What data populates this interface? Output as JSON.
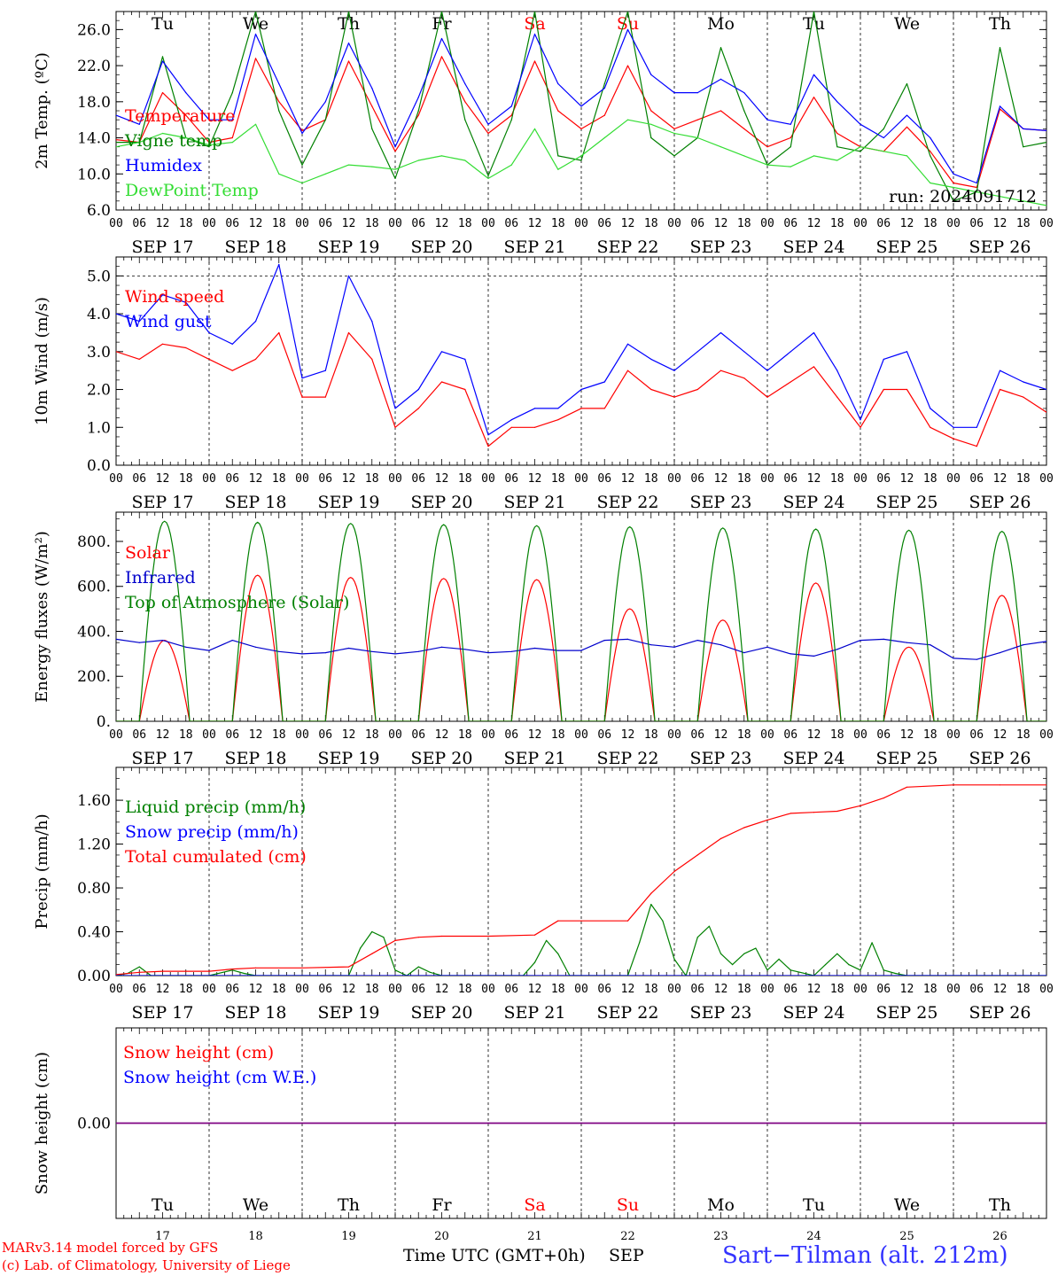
{
  "chart_data": [
    {
      "panel": "temperature",
      "type": "line",
      "ylabel": "2m Temp. (ºC)",
      "ylim": [
        6.0,
        28.0
      ],
      "yticks": [
        6.0,
        10.0,
        14.0,
        18.0,
        22.0,
        26.0
      ],
      "ytick_labels": [
        "6.0",
        "10.0",
        "14.0",
        "18.0",
        "22.0",
        "26.0"
      ],
      "x_unit": "hours since SEP 17 00 UTC",
      "run_label": "run: 2024091712",
      "series": [
        {
          "name": "Temperature",
          "color": "#ff0000",
          "x": [
            0,
            6,
            12,
            18,
            24,
            30,
            36,
            42,
            48,
            54,
            60,
            66,
            72,
            78,
            84,
            90,
            96,
            102,
            108,
            114,
            120,
            126,
            132,
            138,
            144,
            150,
            156,
            162,
            168,
            174,
            180,
            186,
            192,
            198,
            204,
            210,
            216,
            222,
            228,
            234,
            240
          ],
          "y": [
            13.8,
            13.5,
            19.0,
            16.5,
            13.5,
            14.0,
            22.8,
            18.0,
            14.8,
            16.0,
            22.5,
            17.5,
            12.5,
            16.5,
            23.0,
            18.0,
            14.5,
            16.5,
            22.5,
            17.0,
            15.0,
            16.5,
            22.0,
            17.0,
            15.0,
            16.0,
            17.0,
            15.0,
            13.0,
            14.0,
            18.5,
            14.5,
            13.0,
            12.5,
            15.2,
            12.5,
            9.0,
            8.5,
            17.2,
            15.0,
            14.8
          ]
        },
        {
          "name": "Vigne temp",
          "color": "#008000",
          "x": [
            0,
            6,
            12,
            18,
            24,
            30,
            36,
            42,
            48,
            54,
            60,
            66,
            72,
            78,
            84,
            90,
            96,
            102,
            108,
            114,
            120,
            126,
            132,
            138,
            144,
            150,
            156,
            162,
            168,
            174,
            180,
            186,
            192,
            198,
            204,
            210,
            216,
            222,
            228,
            234,
            240
          ],
          "y": [
            13.5,
            13.5,
            23.0,
            14.0,
            13.0,
            19.0,
            28.0,
            17.0,
            11.0,
            16.0,
            28.0,
            15.0,
            9.5,
            17.0,
            28.0,
            16.0,
            9.8,
            16.0,
            28.0,
            12.0,
            11.5,
            20.0,
            28.0,
            14.0,
            12.0,
            14.0,
            24.0,
            17.0,
            11.0,
            13.0,
            28.0,
            13.0,
            12.5,
            15.0,
            20.0,
            12.0,
            7.0,
            8.0,
            24.0,
            13.0,
            13.5
          ]
        },
        {
          "name": "Humidex",
          "color": "#0000ff",
          "x": [
            0,
            6,
            12,
            18,
            24,
            30,
            36,
            42,
            48,
            54,
            60,
            66,
            72,
            78,
            84,
            90,
            96,
            102,
            108,
            114,
            120,
            126,
            132,
            138,
            144,
            150,
            156,
            162,
            168,
            174,
            180,
            186,
            192,
            198,
            204,
            210,
            216,
            222,
            228,
            234,
            240
          ],
          "y": [
            16.5,
            15.5,
            22.5,
            19.0,
            16.0,
            16.0,
            25.5,
            20.0,
            14.5,
            18.0,
            24.5,
            19.5,
            13.0,
            18.5,
            25.0,
            20.0,
            15.5,
            17.5,
            25.5,
            20.0,
            17.5,
            19.5,
            26.0,
            21.0,
            19.0,
            19.0,
            20.5,
            19.0,
            16.0,
            15.5,
            21.0,
            18.0,
            15.5,
            14.0,
            16.5,
            14.0,
            10.0,
            9.0,
            17.5,
            15.0,
            14.8
          ]
        },
        {
          "name": "DewPoint Temp",
          "color": "#33dd33",
          "x": [
            0,
            6,
            12,
            18,
            24,
            30,
            36,
            42,
            48,
            54,
            60,
            66,
            72,
            78,
            84,
            90,
            96,
            102,
            108,
            114,
            120,
            126,
            132,
            138,
            144,
            150,
            156,
            162,
            168,
            174,
            180,
            186,
            192,
            198,
            204,
            210,
            216,
            222,
            228,
            234,
            240
          ],
          "y": [
            13.0,
            13.5,
            14.5,
            14.0,
            13.2,
            13.5,
            15.5,
            10.0,
            9.0,
            10.0,
            11.0,
            10.8,
            10.5,
            11.5,
            12.0,
            11.5,
            9.5,
            11.0,
            15.0,
            10.5,
            12.0,
            14.0,
            16.0,
            15.5,
            14.5,
            14.0,
            13.0,
            12.0,
            11.0,
            10.8,
            12.0,
            11.5,
            13.0,
            12.5,
            12.0,
            9.0,
            8.5,
            8.0,
            7.5,
            7.0,
            6.5
          ]
        }
      ]
    },
    {
      "panel": "wind",
      "type": "line",
      "ylabel": "10m Wind (m/s)",
      "ylim": [
        0.0,
        5.5
      ],
      "yticks": [
        0.0,
        1.0,
        2.0,
        3.0,
        4.0,
        5.0
      ],
      "ytick_labels": [
        "0.0",
        "1.0",
        "2.0",
        "3.0",
        "4.0",
        "5.0"
      ],
      "x_unit": "hours since SEP 17 00 UTC",
      "series": [
        {
          "name": "Wind speed",
          "color": "#ff0000",
          "x": [
            0,
            6,
            12,
            18,
            24,
            30,
            36,
            42,
            48,
            54,
            60,
            66,
            72,
            78,
            84,
            90,
            96,
            102,
            108,
            114,
            120,
            126,
            132,
            138,
            144,
            150,
            156,
            162,
            168,
            174,
            180,
            186,
            192,
            198,
            204,
            210,
            216,
            222,
            228,
            234,
            240
          ],
          "y": [
            3.0,
            2.8,
            3.2,
            3.1,
            2.8,
            2.5,
            2.8,
            3.5,
            1.8,
            1.8,
            3.5,
            2.8,
            1.0,
            1.5,
            2.2,
            2.0,
            0.5,
            1.0,
            1.0,
            1.2,
            1.5,
            1.5,
            2.5,
            2.0,
            1.8,
            2.0,
            2.5,
            2.3,
            1.8,
            2.2,
            2.6,
            1.8,
            1.0,
            2.0,
            2.0,
            1.0,
            0.7,
            0.5,
            2.0,
            1.8,
            1.4
          ]
        },
        {
          "name": "Wind gust",
          "color": "#0000ff",
          "x": [
            0,
            6,
            12,
            18,
            24,
            30,
            36,
            42,
            48,
            54,
            60,
            66,
            72,
            78,
            84,
            90,
            96,
            102,
            108,
            114,
            120,
            126,
            132,
            138,
            144,
            150,
            156,
            162,
            168,
            174,
            180,
            186,
            192,
            198,
            204,
            210,
            216,
            222,
            228,
            234,
            240
          ],
          "y": [
            4.0,
            3.8,
            4.5,
            4.3,
            3.5,
            3.2,
            3.8,
            5.3,
            2.3,
            2.5,
            5.0,
            3.8,
            1.5,
            2.0,
            3.0,
            2.8,
            0.8,
            1.2,
            1.5,
            1.5,
            2.0,
            2.2,
            3.2,
            2.8,
            2.5,
            3.0,
            3.5,
            3.0,
            2.5,
            3.0,
            3.5,
            2.5,
            1.2,
            2.8,
            3.0,
            1.5,
            1.0,
            1.0,
            2.5,
            2.2,
            2.0
          ]
        }
      ]
    },
    {
      "panel": "energy",
      "type": "line",
      "ylabel": "Energy fluxes (W/m²)",
      "ylim": [
        0,
        930
      ],
      "yticks": [
        0,
        200,
        400,
        600,
        800
      ],
      "ytick_labels": [
        "0.",
        "200.",
        "400.",
        "600.",
        "800."
      ],
      "x_unit": "hours since SEP 17 00 UTC",
      "diurnal": {
        "sunrise_hour": 6,
        "sunset_hour": 19,
        "toa_peaks": [
          890,
          885,
          880,
          875,
          870,
          865,
          860,
          855,
          850,
          845
        ],
        "solar_peaks": [
          360,
          650,
          640,
          635,
          630,
          500,
          450,
          615,
          330,
          560
        ]
      },
      "series": [
        {
          "name": "Solar",
          "color": "#ff0000"
        },
        {
          "name": "Infrared",
          "color": "#0000cc",
          "x": [
            0,
            6,
            12,
            18,
            24,
            30,
            36,
            42,
            48,
            54,
            60,
            66,
            72,
            78,
            84,
            90,
            96,
            102,
            108,
            114,
            120,
            126,
            132,
            138,
            144,
            150,
            156,
            162,
            168,
            174,
            180,
            186,
            192,
            198,
            204,
            210,
            216,
            222,
            228,
            234,
            240
          ],
          "y": [
            365,
            350,
            360,
            330,
            315,
            360,
            330,
            310,
            300,
            305,
            325,
            310,
            300,
            310,
            330,
            320,
            305,
            310,
            325,
            315,
            315,
            360,
            365,
            340,
            330,
            360,
            340,
            305,
            330,
            300,
            290,
            320,
            360,
            365,
            350,
            340,
            280,
            275,
            305,
            340,
            355
          ]
        },
        {
          "name": "Top of Atmosphere (Solar)",
          "color": "#008000"
        }
      ]
    },
    {
      "panel": "precip",
      "type": "line",
      "ylabel": "Precip (mm/h)",
      "ylim": [
        0.0,
        1.9
      ],
      "yticks": [
        0.0,
        0.4,
        0.8,
        1.2,
        1.6
      ],
      "ytick_labels": [
        "0.00",
        "0.40",
        "0.80",
        "1.20",
        "1.60"
      ],
      "x_unit": "hours since SEP 17 00 UTC",
      "series": [
        {
          "name": "Liquid precip (mm/h)",
          "color": "#008000",
          "x": [
            0,
            3,
            6,
            9,
            24,
            30,
            33,
            36,
            60,
            63,
            66,
            69,
            72,
            75,
            78,
            81,
            84,
            105,
            108,
            111,
            114,
            117,
            120,
            132,
            135,
            138,
            141,
            144,
            147,
            150,
            153,
            156,
            159,
            162,
            165,
            168,
            171,
            174,
            180,
            183,
            186,
            189,
            192,
            195,
            198,
            201,
            204,
            216,
            228,
            240
          ],
          "y": [
            0,
            0.02,
            0.08,
            0,
            0,
            0.05,
            0.02,
            0,
            0,
            0.25,
            0.4,
            0.35,
            0.05,
            0,
            0.08,
            0.03,
            0,
            0,
            0.12,
            0.32,
            0.2,
            0,
            0,
            0,
            0.3,
            0.65,
            0.5,
            0.15,
            0,
            0.35,
            0.45,
            0.2,
            0.1,
            0.2,
            0.25,
            0.05,
            0.15,
            0.05,
            0,
            0.1,
            0.2,
            0.1,
            0.05,
            0.3,
            0.05,
            0.02,
            0,
            0,
            0,
            0
          ]
        },
        {
          "name": "Snow precip (mm/h)",
          "color": "#0000ff",
          "x": [
            0,
            240
          ],
          "y": [
            0,
            0
          ]
        },
        {
          "name": "Total cumulated (cm)",
          "color": "#ff0000",
          "x": [
            0,
            6,
            12,
            24,
            30,
            36,
            48,
            60,
            66,
            72,
            78,
            84,
            96,
            108,
            114,
            120,
            132,
            138,
            144,
            150,
            156,
            162,
            168,
            174,
            180,
            186,
            192,
            198,
            204,
            216,
            228,
            240
          ],
          "y": [
            0.01,
            0.03,
            0.04,
            0.04,
            0.06,
            0.07,
            0.07,
            0.08,
            0.2,
            0.32,
            0.35,
            0.36,
            0.36,
            0.37,
            0.5,
            0.5,
            0.5,
            0.75,
            0.95,
            1.1,
            1.25,
            1.35,
            1.42,
            1.48,
            1.49,
            1.5,
            1.55,
            1.62,
            1.72,
            1.74,
            1.74,
            1.74
          ]
        }
      ]
    },
    {
      "panel": "snow",
      "type": "line",
      "ylabel": "Snow height (cm)",
      "ylim": [
        -1.0,
        1.0
      ],
      "yticks": [
        0.0
      ],
      "ytick_labels": [
        "0.00"
      ],
      "x_unit": "hours since SEP 17 00 UTC",
      "series": [
        {
          "name": "Snow height (cm)",
          "color": "#ff0000",
          "x": [
            0,
            240
          ],
          "y": [
            0,
            0
          ]
        },
        {
          "name": "Snow height (cm W.E.)",
          "color": "#0000ff",
          "x": [
            0,
            240
          ],
          "y": [
            0,
            0
          ]
        }
      ]
    }
  ],
  "days": [
    {
      "abbr": "Tu",
      "date": "SEP 17",
      "num": "17",
      "weekend": false
    },
    {
      "abbr": "We",
      "date": "SEP 18",
      "num": "18",
      "weekend": false
    },
    {
      "abbr": "Th",
      "date": "SEP 19",
      "num": "19",
      "weekend": false
    },
    {
      "abbr": "Fr",
      "date": "SEP 20",
      "num": "20",
      "weekend": false
    },
    {
      "abbr": "Sa",
      "date": "SEP 21",
      "num": "21",
      "weekend": true
    },
    {
      "abbr": "Su",
      "date": "SEP 22",
      "num": "22",
      "weekend": true
    },
    {
      "abbr": "Mo",
      "date": "SEP 23",
      "num": "23",
      "weekend": false
    },
    {
      "abbr": "Tu",
      "date": "SEP 24",
      "num": "24",
      "weekend": false
    },
    {
      "abbr": "We",
      "date": "SEP 25",
      "num": "25",
      "weekend": false
    },
    {
      "abbr": "Th",
      "date": "SEP 26",
      "num": "26",
      "weekend": false
    }
  ],
  "hour_ticks": [
    "00",
    "06",
    "12",
    "18"
  ],
  "xaxis_label": "Time UTC (GMT+0h)",
  "xaxis_month": "SEP",
  "footer_left_1": "MARv3.14 model forced by GFS",
  "footer_left_2": "(c) Lab. of Climatology, University of Liege",
  "station_label": "Sart−Tilman (alt. 212m)",
  "colors": {
    "weekend": "#ff0000",
    "weekday": "#000000",
    "station": "#3333ff",
    "footer": "#ff0000"
  }
}
